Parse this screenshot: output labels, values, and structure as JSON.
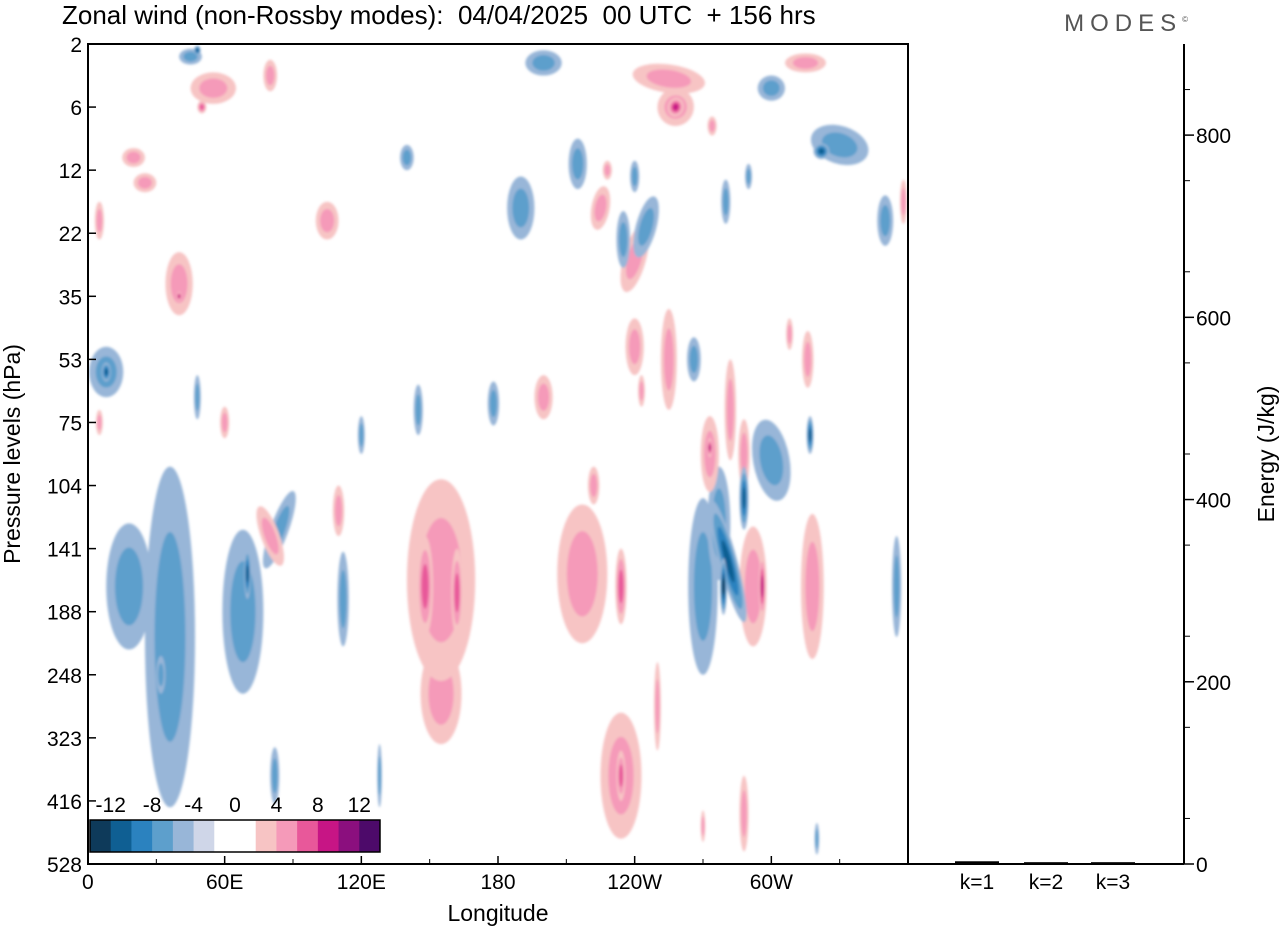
{
  "title": "Zonal wind (non-Rossby modes):  04/04/2025  00 UTC  + 156 hrs",
  "brand": "MODES",
  "brand_mark": "©",
  "chart_data": [
    {
      "type": "heatmap",
      "title": "Zonal wind (non-Rossby modes):  04/04/2025  00 UTC  + 156 hrs",
      "xlabel": "Longitude",
      "ylabel": "Pressure levels (hPa)",
      "x_ticks": [
        "0",
        "60E",
        "120E",
        "180",
        "120W",
        "60W"
      ],
      "x_tick_degrees_east": [
        0,
        60,
        120,
        180,
        240,
        300
      ],
      "xlim_degrees_east": [
        0,
        360
      ],
      "y_ticks": [
        "2",
        "6",
        "12",
        "22",
        "35",
        "53",
        "75",
        "104",
        "141",
        "188",
        "248",
        "323",
        "416",
        "528"
      ],
      "colorbar": {
        "tick_labels": [
          "-12",
          "-8",
          "-4",
          "0",
          "4",
          "8",
          "12"
        ],
        "colors": [
          "#0e3a5a",
          "#0f5f93",
          "#2b82bf",
          "#5d9fcc",
          "#98b6d8",
          "#cfd6e8",
          "#ffffff",
          "#ffffff",
          "#f7c4c4",
          "#f59ab9",
          "#e8589a",
          "#c71585",
          "#8b0f7e",
          "#4d0a6a"
        ]
      },
      "blobs": [
        {
          "lon": 155,
          "lev": 8.5,
          "value": 5,
          "w": 30,
          "h": 3.2,
          "rot": 0
        },
        {
          "lon": 148,
          "lev": 8.6,
          "value": 7,
          "w": 7,
          "h": 1.6,
          "rot": 0
        },
        {
          "lon": 162,
          "lev": 8.7,
          "value": 6,
          "w": 5,
          "h": 1.4,
          "rot": 0
        },
        {
          "lon": 155,
          "lev": 10.3,
          "value": 4,
          "w": 18,
          "h": 1.6,
          "rot": 0
        },
        {
          "lon": 217,
          "lev": 8.4,
          "value": 4,
          "w": 22,
          "h": 2.2,
          "rot": 0
        },
        {
          "lon": 234,
          "lev": 8.6,
          "value": 7,
          "w": 5,
          "h": 1.2,
          "rot": 0
        },
        {
          "lon": 234,
          "lev": 11.6,
          "value": 5,
          "w": 18,
          "h": 2.0,
          "rot": 0
        },
        {
          "lon": 234,
          "lev": 11.6,
          "value": 7,
          "w": 4,
          "h": 0.8,
          "rot": 0
        },
        {
          "lon": 273,
          "lev": 6.5,
          "value": 5,
          "w": 8,
          "h": 1.2,
          "rot": 0
        },
        {
          "lon": 273,
          "lev": 6.4,
          "value": 8,
          "w": 2,
          "h": 0.3,
          "rot": 0
        },
        {
          "lon": 288,
          "lev": 6.5,
          "value": 4,
          "w": 5,
          "h": 1.1,
          "rot": 0
        },
        {
          "lon": 292,
          "lev": 8.6,
          "value": 5,
          "w": 12,
          "h": 1.9,
          "rot": 0
        },
        {
          "lon": 296,
          "lev": 8.6,
          "value": 8,
          "w": 3,
          "h": 1.0,
          "rot": 0
        },
        {
          "lon": 318,
          "lev": 8.6,
          "value": 4,
          "w": 10,
          "h": 2.3,
          "rot": 0
        },
        {
          "lon": 270,
          "lev": 8.6,
          "value": -4,
          "w": 13,
          "h": 2.8,
          "rot": 0
        },
        {
          "lon": 277,
          "lev": 7.6,
          "value": -4,
          "w": 10,
          "h": 1.8,
          "rot": 0
        },
        {
          "lon": 281,
          "lev": 8.2,
          "value": -8,
          "w": 8,
          "h": 2.0,
          "rot": -15
        },
        {
          "lon": 279,
          "lev": 8.6,
          "value": -10,
          "w": 3,
          "h": 0.9,
          "rot": 0
        },
        {
          "lon": 288,
          "lev": 7.2,
          "value": -8,
          "w": 4,
          "h": 1.0,
          "rot": 0
        },
        {
          "lon": 300,
          "lev": 6.6,
          "value": -4,
          "w": 16,
          "h": 1.3,
          "rot": -10
        },
        {
          "lon": 317,
          "lev": 6.2,
          "value": -8,
          "w": 3,
          "h": 0.6,
          "rot": 0
        },
        {
          "lon": 36,
          "lev": 9.4,
          "value": -4,
          "w": 22,
          "h": 5.4,
          "rot": 0
        },
        {
          "lon": 18,
          "lev": 8.6,
          "value": -4,
          "w": 20,
          "h": 2.0,
          "rot": 0
        },
        {
          "lon": 68,
          "lev": 9.0,
          "value": -4,
          "w": 18,
          "h": 2.6,
          "rot": 0
        },
        {
          "lon": 84,
          "lev": 7.7,
          "value": -4,
          "w": 8,
          "h": 1.3,
          "rot": 20
        },
        {
          "lon": 112,
          "lev": 8.8,
          "value": -4,
          "w": 5,
          "h": 1.5,
          "rot": 0
        },
        {
          "lon": 82,
          "lev": 11.6,
          "value": -4,
          "w": 4,
          "h": 0.9,
          "rot": 0
        },
        {
          "lon": 355,
          "lev": 8.6,
          "value": -4,
          "w": 4,
          "h": 1.6,
          "rot": 0
        },
        {
          "lon": 70,
          "lev": 8.4,
          "value": -8,
          "w": 3,
          "h": 0.8,
          "rot": 0
        },
        {
          "lon": 8,
          "lev": 5.2,
          "value": -4,
          "w": 15,
          "h": 0.8,
          "rot": 0
        },
        {
          "lon": 8,
          "lev": 5.2,
          "value": -8,
          "w": 4,
          "h": 0.3,
          "rot": 0
        },
        {
          "lon": 80,
          "lev": 7.8,
          "value": 4,
          "w": 8,
          "h": 1.0,
          "rot": -20
        },
        {
          "lon": 110,
          "lev": 7.4,
          "value": 4,
          "w": 5,
          "h": 0.8,
          "rot": 0
        },
        {
          "lon": 60,
          "lev": 6.0,
          "value": 4,
          "w": 4,
          "h": 0.5,
          "rot": 0
        },
        {
          "lon": 5,
          "lev": 6.0,
          "value": 4,
          "w": 3,
          "h": 0.4,
          "rot": 0
        },
        {
          "lon": 200,
          "lev": 5.6,
          "value": 4,
          "w": 8,
          "h": 0.7,
          "rot": 0
        },
        {
          "lon": 240,
          "lev": 4.8,
          "value": 4,
          "w": 8,
          "h": 0.9,
          "rot": 0
        },
        {
          "lon": 255,
          "lev": 5.0,
          "value": 4,
          "w": 7,
          "h": 1.6,
          "rot": 0
        },
        {
          "lon": 316,
          "lev": 5.0,
          "value": 4,
          "w": 5,
          "h": 0.9,
          "rot": 0
        },
        {
          "lon": 240,
          "lev": 3.4,
          "value": 4,
          "w": 10,
          "h": 1.1,
          "rot": 15
        },
        {
          "lon": 245,
          "lev": 2.9,
          "value": -4,
          "w": 9,
          "h": 1.0,
          "rot": 15
        },
        {
          "lon": 255,
          "lev": 0.55,
          "value": 4,
          "w": 32,
          "h": 0.45,
          "rot": 8
        },
        {
          "lon": 258,
          "lev": 1.0,
          "value": 5,
          "w": 16,
          "h": 0.6,
          "rot": 12
        },
        {
          "lon": 258,
          "lev": 1.0,
          "value": 8,
          "w": 7,
          "h": 0.3,
          "rot": 12
        },
        {
          "lon": 274,
          "lev": 1.3,
          "value": 5,
          "w": 4,
          "h": 0.3,
          "rot": 0
        },
        {
          "lon": 315,
          "lev": 0.3,
          "value": 4,
          "w": 18,
          "h": 0.3,
          "rot": 0
        },
        {
          "lon": 330,
          "lev": 1.6,
          "value": -4,
          "w": 26,
          "h": 0.6,
          "rot": 18
        },
        {
          "lon": 322,
          "lev": 1.7,
          "value": -8,
          "w": 7,
          "h": 0.25,
          "rot": 15
        },
        {
          "lon": 350,
          "lev": 2.8,
          "value": -4,
          "w": 7,
          "h": 0.8,
          "rot": 0
        },
        {
          "lon": 358,
          "lev": 2.5,
          "value": 4,
          "w": 3,
          "h": 0.7,
          "rot": 0
        },
        {
          "lon": 300,
          "lev": 0.7,
          "value": -4,
          "w": 12,
          "h": 0.4,
          "rot": 0
        },
        {
          "lon": 200,
          "lev": 0.3,
          "value": -4,
          "w": 16,
          "h": 0.4,
          "rot": 0
        },
        {
          "lon": 45,
          "lev": 0.2,
          "value": -4,
          "w": 10,
          "h": 0.25,
          "rot": 0
        },
        {
          "lon": 48,
          "lev": 0.1,
          "value": -8,
          "w": 3,
          "h": 0.15,
          "rot": 0
        },
        {
          "lon": 55,
          "lev": 0.7,
          "value": 4,
          "w": 20,
          "h": 0.5,
          "rot": 0
        },
        {
          "lon": 50,
          "lev": 1.0,
          "value": 6,
          "w": 4,
          "h": 0.2,
          "rot": 0
        },
        {
          "lon": 80,
          "lev": 0.5,
          "value": 4,
          "w": 6,
          "h": 0.5,
          "rot": 0
        },
        {
          "lon": 20,
          "lev": 1.8,
          "value": 4,
          "w": 10,
          "h": 0.3,
          "rot": 0
        },
        {
          "lon": 25,
          "lev": 2.2,
          "value": 4,
          "w": 10,
          "h": 0.3,
          "rot": 0
        },
        {
          "lon": 5,
          "lev": 2.8,
          "value": 5,
          "w": 4,
          "h": 0.6,
          "rot": 0
        },
        {
          "lon": 40,
          "lev": 3.8,
          "value": 4,
          "w": 12,
          "h": 1.0,
          "rot": 0
        },
        {
          "lon": 40,
          "lev": 4.0,
          "value": 8,
          "w": 2,
          "h": 0.15,
          "rot": 0
        },
        {
          "lon": 105,
          "lev": 2.8,
          "value": 4,
          "w": 10,
          "h": 0.6,
          "rot": 0
        },
        {
          "lon": 140,
          "lev": 1.8,
          "value": -4,
          "w": 6,
          "h": 0.4,
          "rot": 0
        },
        {
          "lon": 190,
          "lev": 2.6,
          "value": -4,
          "w": 12,
          "h": 1.0,
          "rot": 0
        },
        {
          "lon": 215,
          "lev": 1.9,
          "value": -4,
          "w": 8,
          "h": 0.8,
          "rot": 0
        },
        {
          "lon": 225,
          "lev": 2.6,
          "value": 4,
          "w": 8,
          "h": 0.7,
          "rot": 10
        },
        {
          "lon": 228,
          "lev": 2.0,
          "value": 4,
          "w": 4,
          "h": 0.3,
          "rot": 0
        },
        {
          "lon": 240,
          "lev": 2.1,
          "value": -4,
          "w": 4,
          "h": 0.5,
          "rot": 0
        },
        {
          "lon": 235,
          "lev": 3.1,
          "value": -4,
          "w": 6,
          "h": 0.9,
          "rot": 0
        },
        {
          "lon": 280,
          "lev": 2.5,
          "value": -4,
          "w": 4,
          "h": 0.7,
          "rot": 0
        },
        {
          "lon": 290,
          "lev": 2.1,
          "value": -4,
          "w": 3,
          "h": 0.4,
          "rot": 0
        },
        {
          "lon": 308,
          "lev": 4.6,
          "value": 4,
          "w": 3,
          "h": 0.5,
          "rot": 0
        },
        {
          "lon": 282,
          "lev": 5.8,
          "value": 4,
          "w": 5,
          "h": 1.6,
          "rot": 0
        },
        {
          "lon": 266,
          "lev": 5.0,
          "value": -4,
          "w": 6,
          "h": 0.7,
          "rot": 0
        },
        {
          "lon": 178,
          "lev": 5.7,
          "value": -4,
          "w": 5,
          "h": 0.7,
          "rot": 0
        },
        {
          "lon": 145,
          "lev": 5.8,
          "value": -4,
          "w": 4,
          "h": 0.8,
          "rot": 0
        },
        {
          "lon": 120,
          "lev": 6.2,
          "value": -4,
          "w": 3,
          "h": 0.6,
          "rot": 0
        },
        {
          "lon": 48,
          "lev": 5.6,
          "value": -4,
          "w": 3,
          "h": 0.7,
          "rot": 0
        },
        {
          "lon": 250,
          "lev": 10.5,
          "value": 4,
          "w": 3,
          "h": 1.4,
          "rot": 0
        },
        {
          "lon": 288,
          "lev": 12.2,
          "value": 4,
          "w": 4,
          "h": 1.2,
          "rot": 0
        },
        {
          "lon": 128,
          "lev": 11.6,
          "value": -4,
          "w": 2,
          "h": 1.0,
          "rot": 0
        },
        {
          "lon": 32,
          "lev": 10.0,
          "value": -4,
          "w": 4,
          "h": 0.6,
          "rot": 0
        },
        {
          "lon": 222,
          "lev": 7.0,
          "value": 4,
          "w": 5,
          "h": 0.6,
          "rot": 0
        },
        {
          "lon": 243,
          "lev": 5.5,
          "value": 4,
          "w": 3,
          "h": 0.5,
          "rot": 0
        },
        {
          "lon": 320,
          "lev": 12.6,
          "value": -4,
          "w": 2,
          "h": 0.5,
          "rot": 0
        },
        {
          "lon": 270,
          "lev": 12.4,
          "value": 4,
          "w": 2,
          "h": 0.5,
          "rot": 0
        }
      ]
    },
    {
      "type": "bar",
      "categories": [
        "k=1",
        "k=2",
        "k=3"
      ],
      "values": [
        3,
        2,
        2
      ],
      "ylabel": "Energy (J/kg)",
      "ylim": [
        0,
        900
      ],
      "y_ticks": [
        0,
        200,
        400,
        600,
        800
      ]
    }
  ]
}
